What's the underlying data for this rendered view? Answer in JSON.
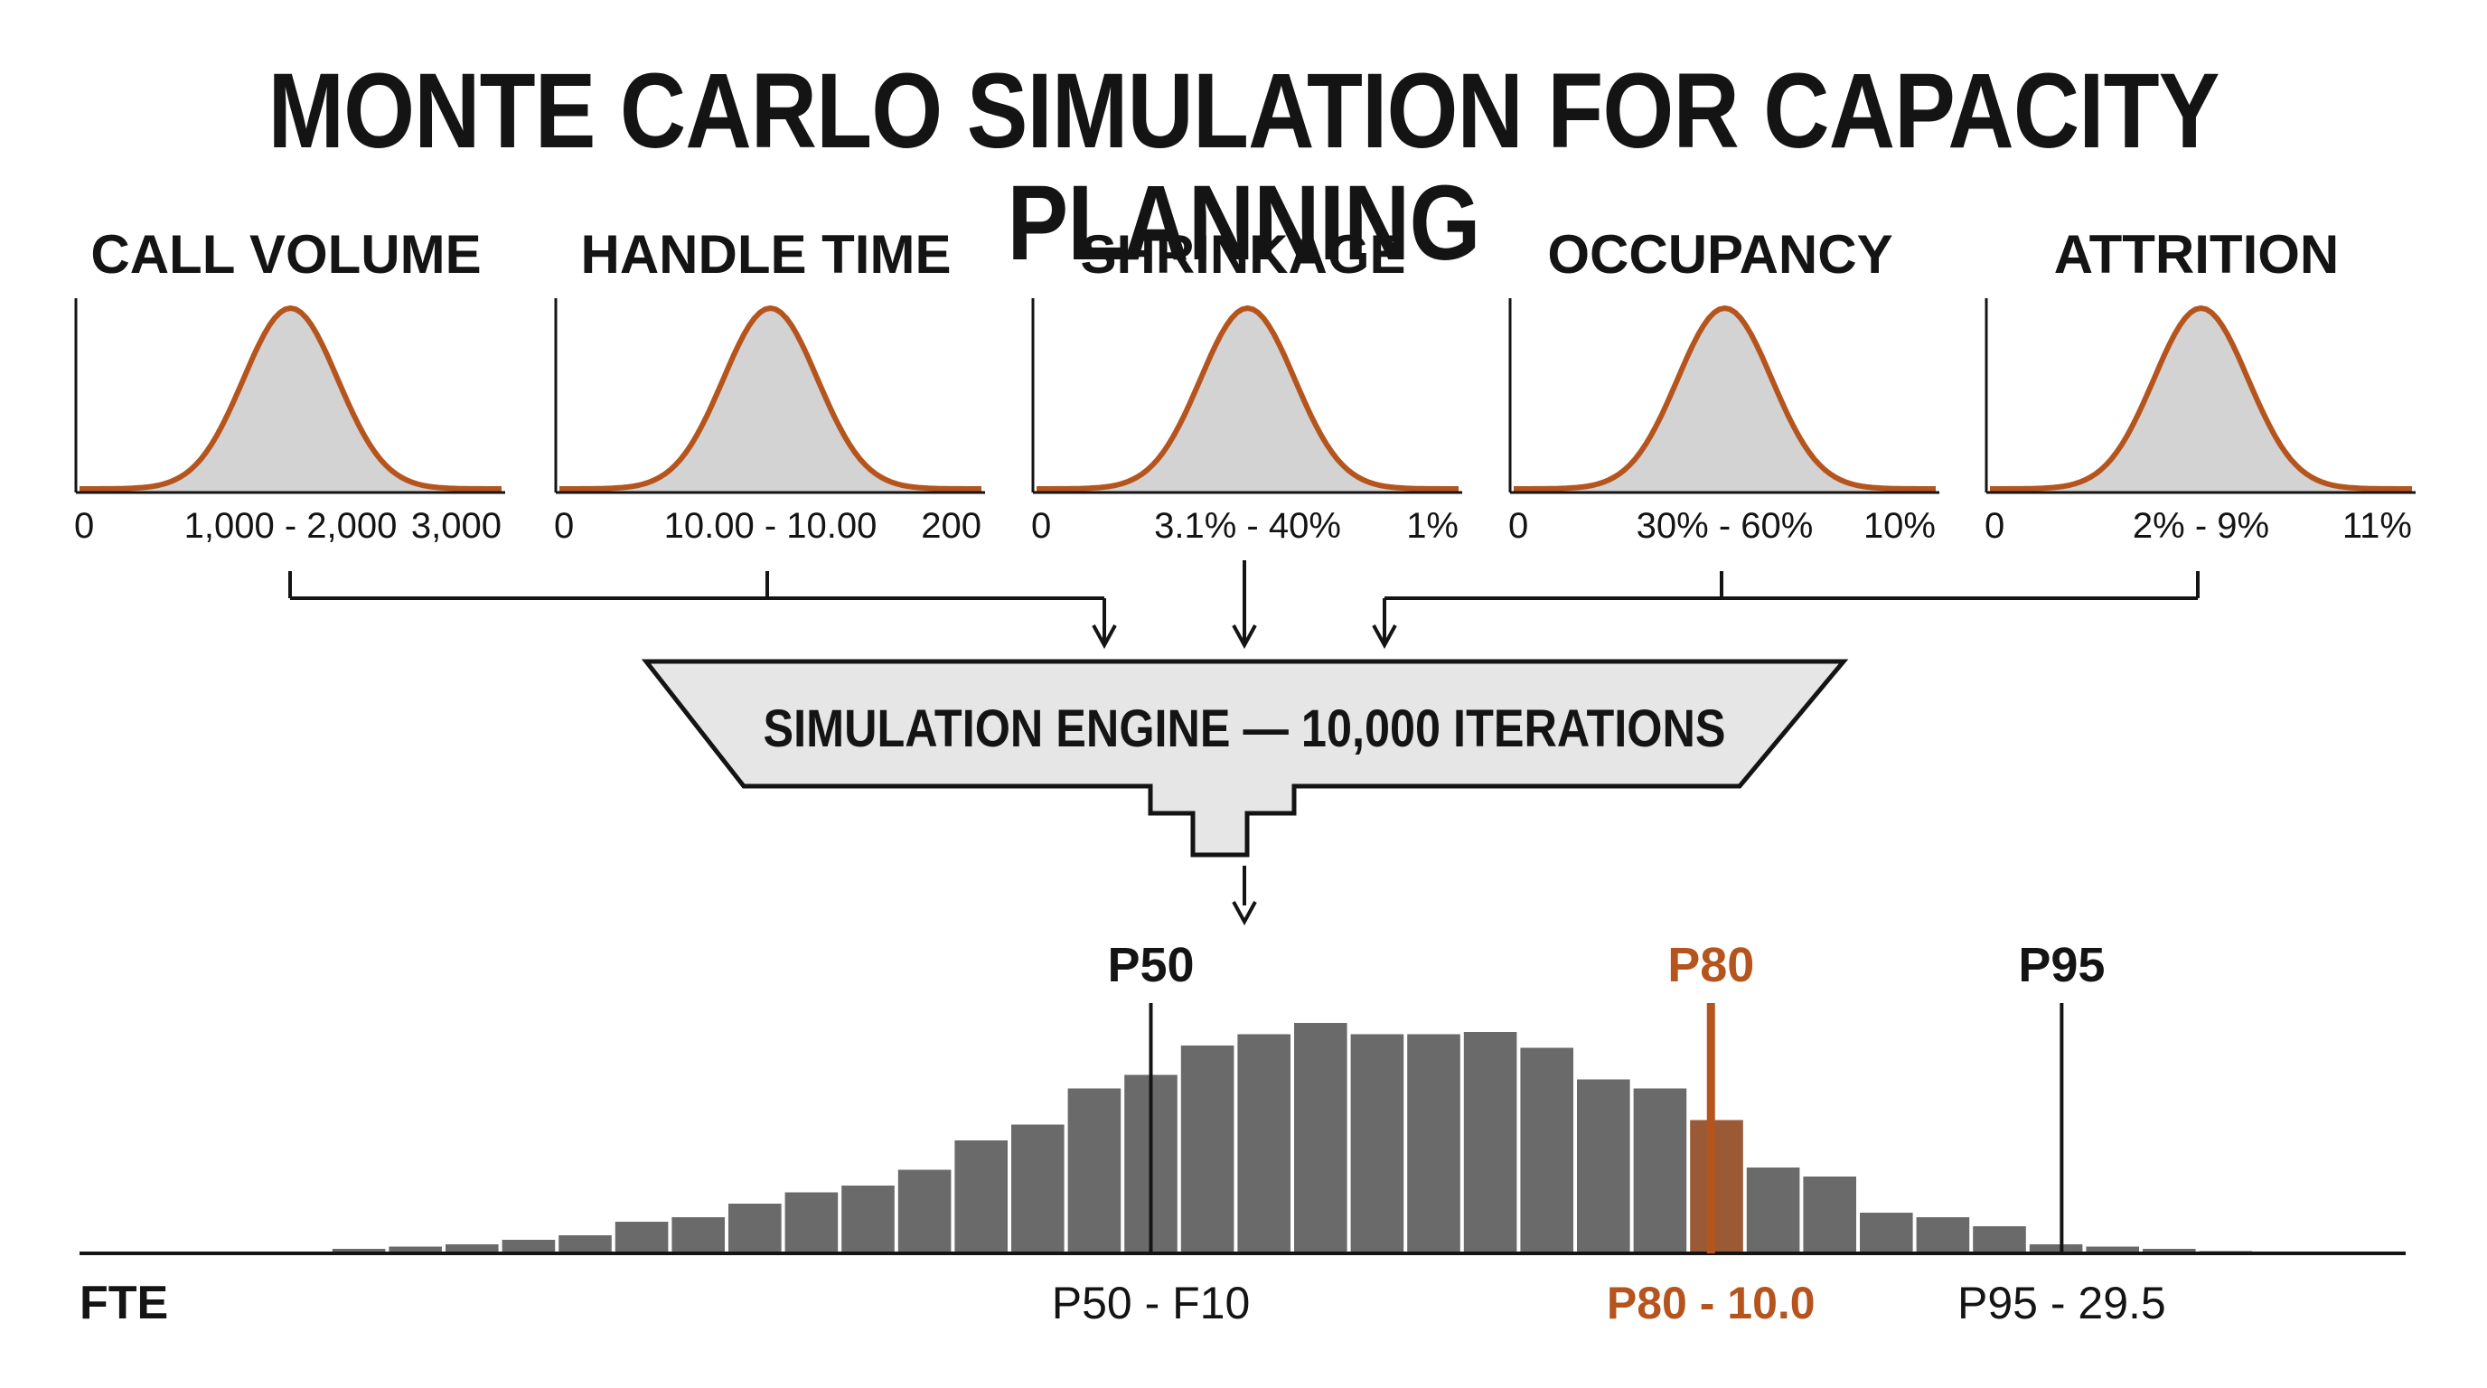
{
  "title": "MONTE CARLO SIMULATION FOR CAPACITY PLANNING",
  "inputs": [
    {
      "name": "CALL VOLUME",
      "min_label": "0",
      "range_label": "1,000 - 2,000",
      "max_label": "3,000"
    },
    {
      "name": "HANDLE TIME",
      "min_label": "0",
      "range_label": "10.00 - 10.00",
      "max_label": "200"
    },
    {
      "name": "SHRINKAGE",
      "min_label": "0",
      "range_label": "3.1% - 40%",
      "max_label": "1%"
    },
    {
      "name": "OCCUPANCY",
      "min_label": "0",
      "range_label": "30% - 60%",
      "max_label": "10%"
    },
    {
      "name": "ATTRITION",
      "min_label": "0",
      "range_label": "2% - 9%",
      "max_label": "11%"
    }
  ],
  "engine": {
    "label": "SIMULATION ENGINE — 10,000 ITERATIONS"
  },
  "output": {
    "axis_label": "FTE",
    "markers": [
      {
        "id": "p50",
        "name": "P50",
        "value_label": "P50 - F10",
        "color": "#141414",
        "bin": 17.5
      },
      {
        "id": "p80",
        "name": "P80",
        "value_label": "P80 - 10.0",
        "color": "#b5551d",
        "bin": 27.4
      },
      {
        "id": "p95",
        "name": "P95",
        "value_label": "P95 - 29.5",
        "color": "#141414",
        "bin": 33.6
      }
    ]
  },
  "chart_data": {
    "type": "bar",
    "histogram_relative_heights": [
      0,
      0,
      0,
      0.02,
      0.03,
      0.04,
      0.06,
      0.08,
      0.14,
      0.16,
      0.22,
      0.27,
      0.3,
      0.37,
      0.5,
      0.57,
      0.73,
      0.79,
      0.92,
      0.97,
      1.02,
      0.97,
      0.97,
      0.98,
      0.91,
      0.77,
      0.73,
      0.59,
      0.38,
      0.34,
      0.18,
      0.16,
      0.12,
      0.04,
      0.03,
      0.02,
      0.01
    ],
    "highlight_bin": 27,
    "xlabel": "FTE"
  },
  "colors": {
    "accent": "#b5551d",
    "bar": "#6a6a6a",
    "curve_fill": "#d3d3d3",
    "engine_fill": "#e6e6e6"
  }
}
